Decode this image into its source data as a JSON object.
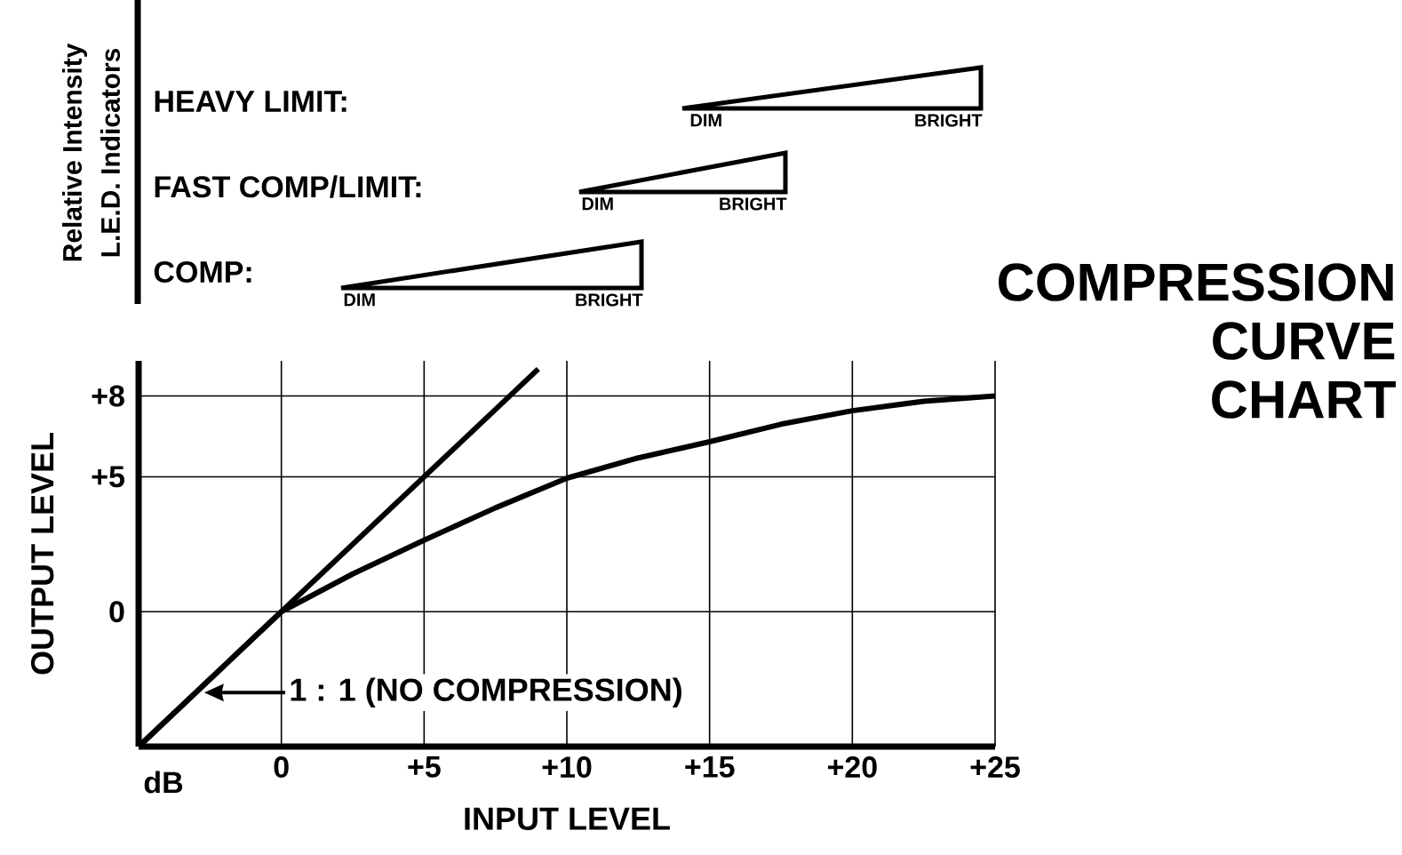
{
  "chart_data": {
    "type": "line",
    "title": "COMPRESSION CURVE CHART",
    "xlabel": "INPUT LEVEL",
    "ylabel": "OUTPUT LEVEL",
    "xlim": [
      -5,
      25
    ],
    "ylim": [
      -5,
      9.3
    ],
    "xticks": [
      0,
      {
        "value": 5,
        "label": "+5"
      },
      {
        "value": 10,
        "label": "+10"
      },
      {
        "value": 15,
        "label": "+15"
      },
      {
        "value": 20,
        "label": "+20"
      },
      {
        "value": 25,
        "label": "+25"
      }
    ],
    "yticks": [
      0,
      {
        "value": 5,
        "label": "+5"
      },
      {
        "value": 8,
        "label": "+8"
      }
    ],
    "grid": true,
    "line_style": "solid",
    "series": [
      {
        "color": "#000000",
        "x": [
          -5,
          9
        ],
        "values": [
          -5,
          9
        ]
      },
      {
        "color": "#000000",
        "x": [
          -5,
          0,
          2.5,
          5,
          7.5,
          10,
          12.5,
          15,
          17.5,
          20,
          22.5,
          25
        ],
        "values": [
          -5,
          0,
          1.4,
          2.65,
          3.85,
          4.95,
          5.7,
          6.3,
          6.95,
          7.45,
          7.8,
          8
        ]
      }
    ],
    "annotations": [
      {
        "text": "1 : 1 (NO COMPRESSION)",
        "x": -2.7,
        "y": -3
      },
      "dB",
      "Relative Intensity",
      "L.E.D. Indicators",
      "HEAVY LIMIT:",
      "DIM",
      "BRIGHT",
      "FAST COMP/LIMIT:",
      "DIM",
      "BRIGHT",
      "COMP:",
      "DIM",
      "BRIGHT"
    ]
  }
}
